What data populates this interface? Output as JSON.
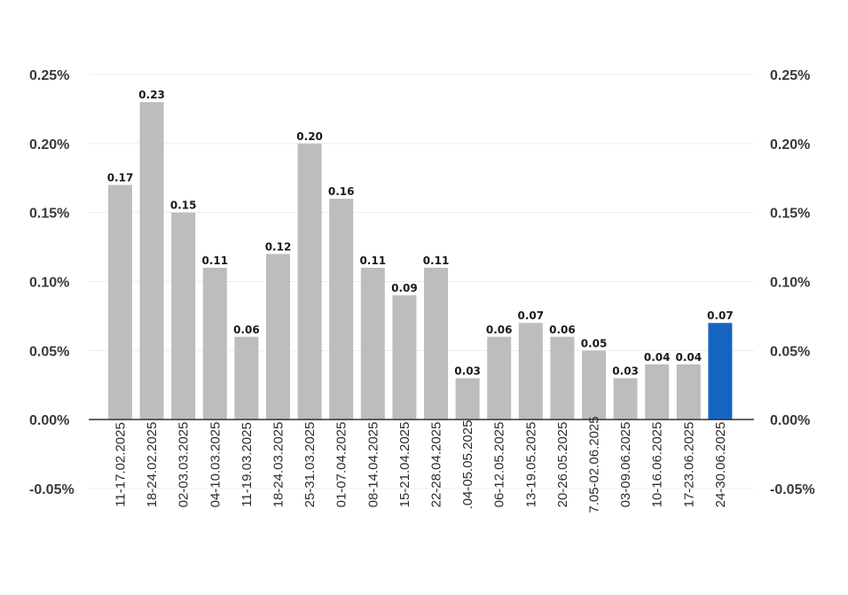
{
  "chart_data": {
    "type": "bar",
    "categories": [
      "11-17.02.2025",
      "18-24.02.2025",
      "02-03.03.2025",
      "04-10.03.2025",
      "11-19.03.2025",
      "18-24.03.2025",
      "25-31.03.2025",
      "01-07.04.2025",
      "08-14.04.2025",
      "15-21.04.2025",
      "22-28.04.2025",
      ".04-05.05.2025",
      "06-12.05.2025",
      "13-19.05.2025",
      "20-26.05.2025",
      "7.05-02.06.2025",
      "03-09.06.2025",
      "10-16.06.2025",
      "17-23.06.2025",
      "24-30.06.2025"
    ],
    "values": [
      0.17,
      0.23,
      0.15,
      0.11,
      0.06,
      0.12,
      0.2,
      0.16,
      0.11,
      0.09,
      0.11,
      0.03,
      0.06,
      0.07,
      0.06,
      0.05,
      0.03,
      0.04,
      0.04,
      0.07
    ],
    "data_labels": [
      "0.17",
      "0.23",
      "0.15",
      "0.11",
      "0.06",
      "0.12",
      "0.20",
      "0.16",
      "0.11",
      "0.09",
      "0.11",
      "0.03",
      "0.06",
      "0.07",
      "0.06",
      "0.05",
      "0.03",
      "0.04",
      "0.04",
      "0.07"
    ],
    "y_ticks": [
      0.25,
      0.2,
      0.15,
      0.1,
      0.05,
      0.0,
      -0.05
    ],
    "y_tick_labels": [
      "0.25%",
      "0.20%",
      "0.15%",
      "0.10%",
      "0.05%",
      "0.00%",
      "-0.05%"
    ],
    "right_y_tick_labels": [
      "0.25%",
      "0.20%",
      "0.15%",
      "0.10%",
      "0.05%",
      "0.00%",
      "-0.05%"
    ],
    "ylim": [
      -0.05,
      0.25
    ],
    "title": "",
    "xlabel": "",
    "ylabel": "",
    "grid": true,
    "highlight_index": 19,
    "colors": {
      "bar": "#bdbdbd",
      "highlight": "#1565c0",
      "grid": "#ececec",
      "zero_line": "#333333"
    }
  }
}
